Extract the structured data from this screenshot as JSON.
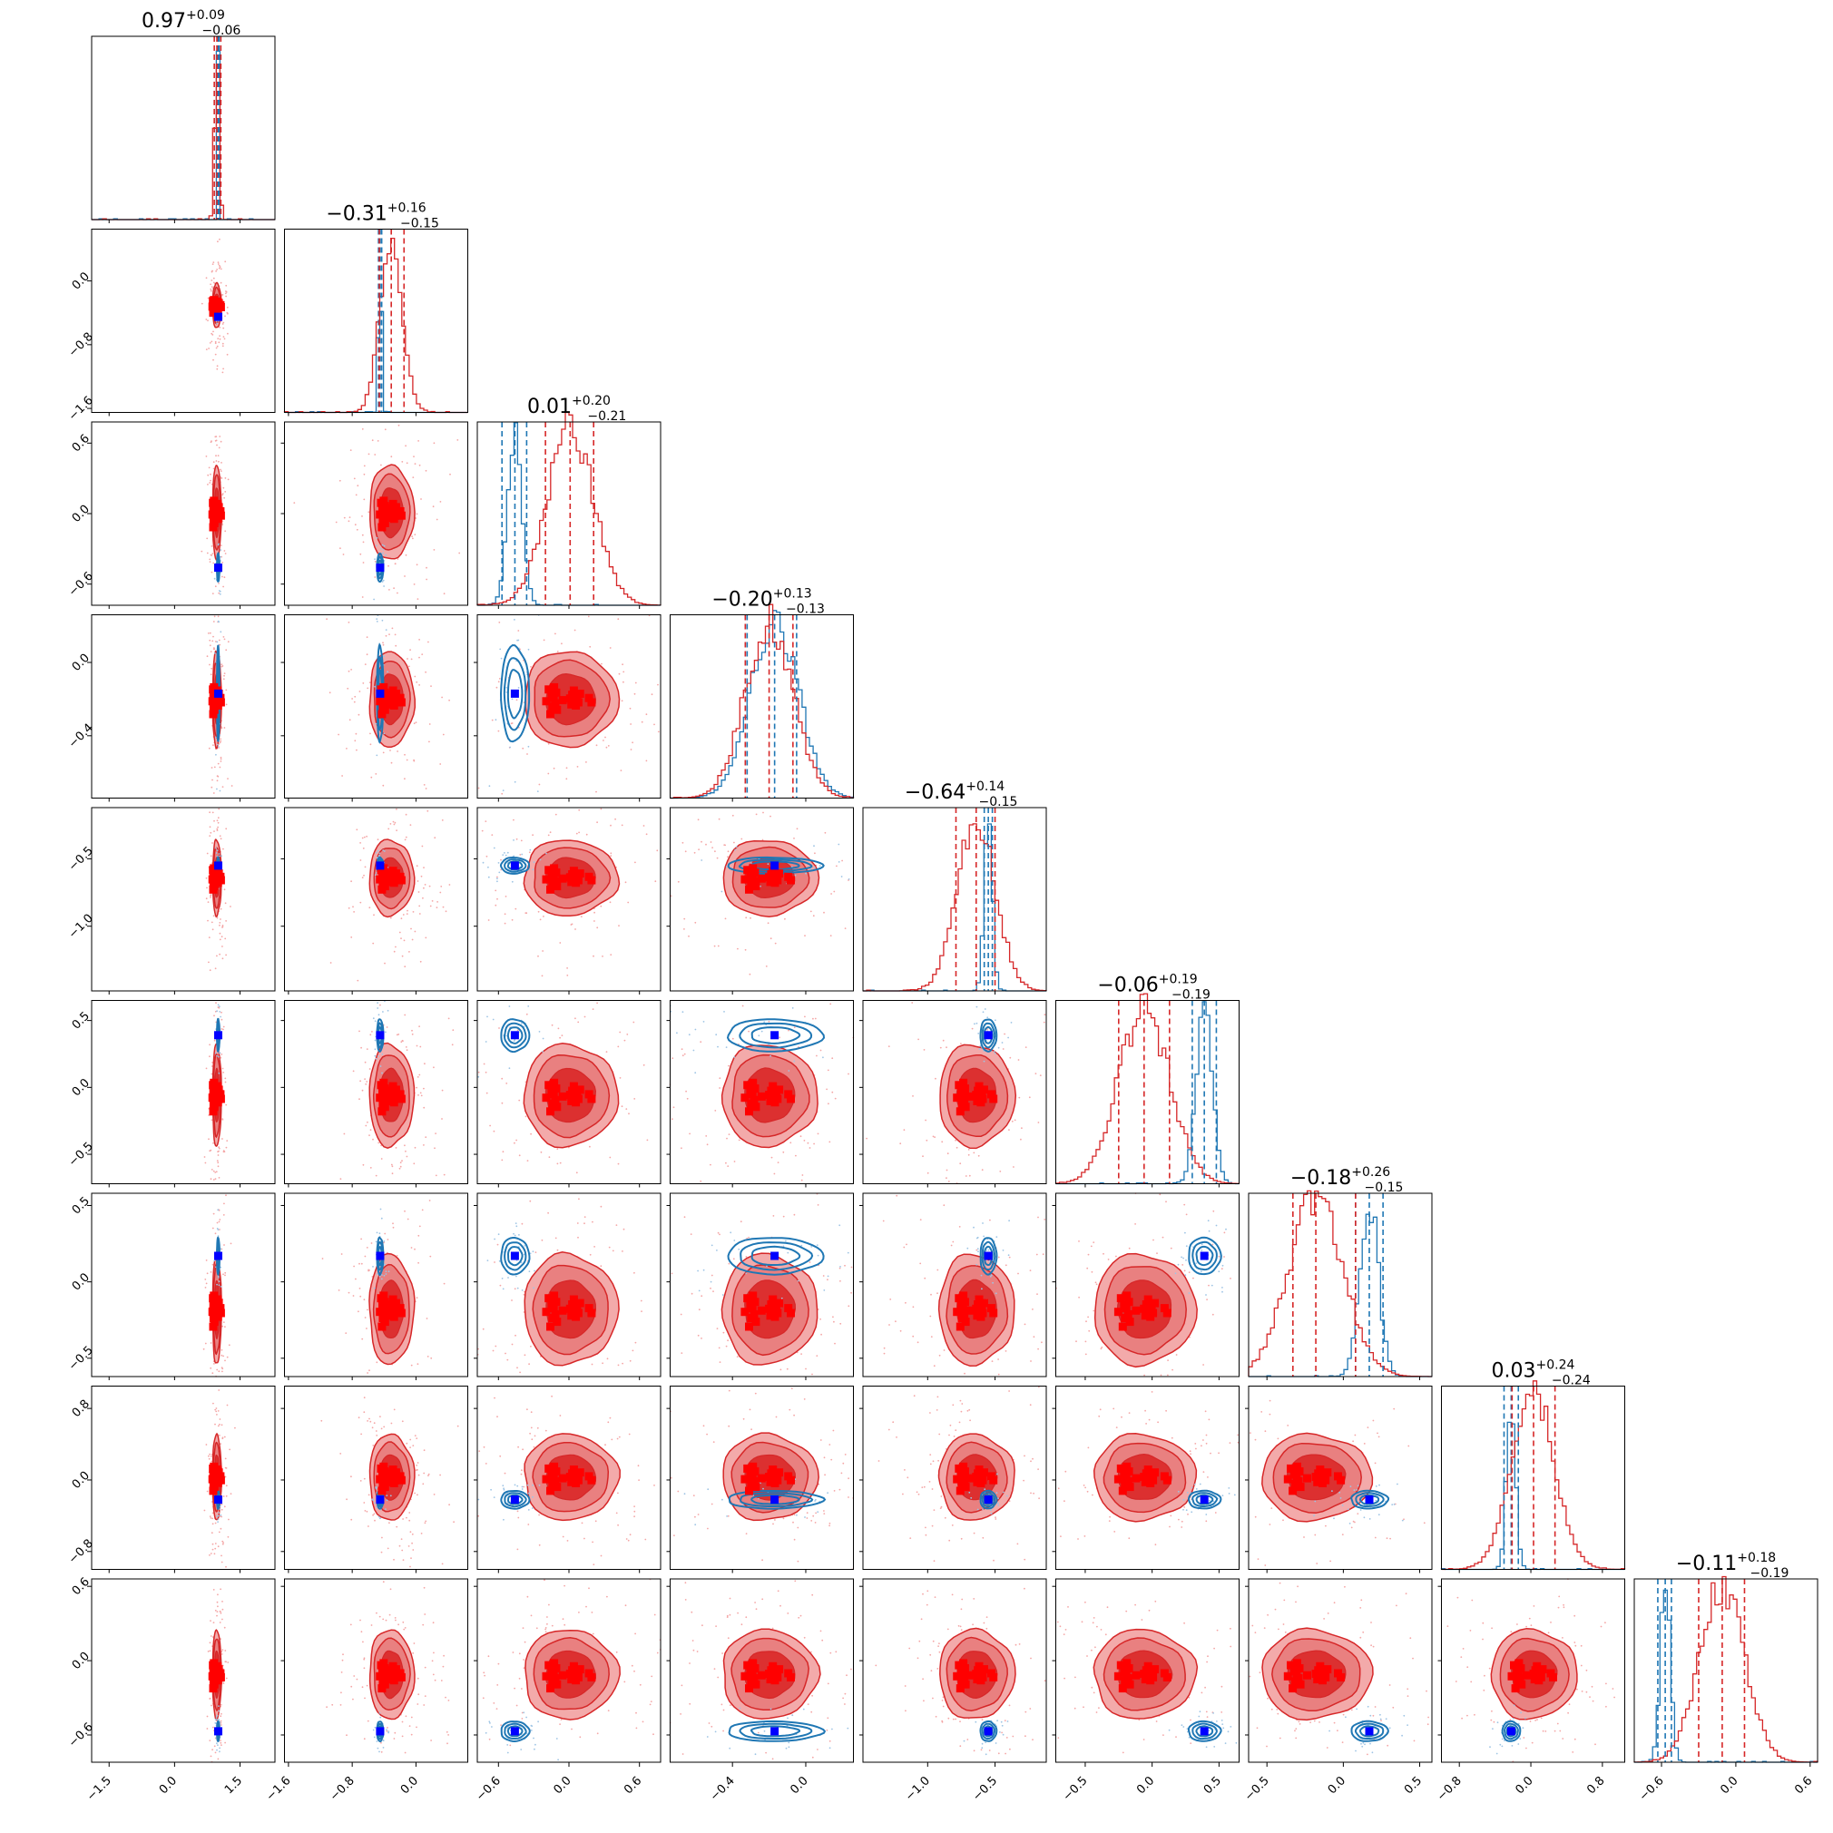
{
  "figure": {
    "kind": "corner-plot",
    "colors": {
      "posterior": "#d62728",
      "reference": "#1f77b4",
      "truth_marker": "#0000ff",
      "sample_marker": "#ff0000"
    }
  },
  "chart_data": {
    "type": "scatter",
    "subtype": "corner",
    "grid": false,
    "parameters": [
      {
        "index": 0,
        "title": {
          "median": "0.97",
          "plus": "+0.09",
          "minus": "−0.06"
        },
        "range": [
          -1.9,
          2.3
        ],
        "ticks": [
          {
            "v": -1.5,
            "label": "−1.5"
          },
          {
            "v": 0.0,
            "label": "0.0"
          },
          {
            "v": 1.5,
            "label": "1.5"
          }
        ],
        "truth": 1.0,
        "quantiles": [
          0.91,
          0.97,
          1.06
        ],
        "ref_lines": [
          0.99,
          1.0,
          1.02
        ],
        "mean": 0.97,
        "sd": 0.05,
        "ref_mean": 1.0,
        "ref_sd": 0.015
      },
      {
        "index": 1,
        "title": {
          "median": "−0.31",
          "plus": "+0.16",
          "minus": "−0.15"
        },
        "range": [
          -1.65,
          0.65
        ],
        "ticks": [
          {
            "v": -1.6,
            "label": "−1.6"
          },
          {
            "v": -0.8,
            "label": "−0.8"
          },
          {
            "v": 0.0,
            "label": "0.0"
          }
        ],
        "truth": -0.45,
        "quantiles": [
          -0.46,
          -0.31,
          -0.15
        ],
        "ref_lines": [
          -0.47,
          -0.45,
          -0.43
        ],
        "mean": -0.31,
        "sd": 0.14,
        "ref_mean": -0.45,
        "ref_sd": 0.02
      },
      {
        "index": 2,
        "title": {
          "median": "0.01",
          "plus": "+0.20",
          "minus": "−0.21"
        },
        "range": [
          -0.78,
          0.78
        ],
        "ticks": [
          {
            "v": -0.6,
            "label": "−0.6"
          },
          {
            "v": 0.0,
            "label": "0.0"
          },
          {
            "v": 0.6,
            "label": "0.6"
          }
        ],
        "truth": -0.46,
        "quantiles": [
          -0.2,
          0.01,
          0.21
        ],
        "ref_lines": [
          -0.57,
          -0.46,
          -0.36
        ],
        "mean": 0.01,
        "sd": 0.2,
        "ref_mean": -0.46,
        "ref_sd": 0.06
      },
      {
        "index": 3,
        "title": {
          "median": "−0.20",
          "plus": "+0.13",
          "minus": "−0.13"
        },
        "range": [
          -0.74,
          0.26
        ],
        "ticks": [
          {
            "v": -0.4,
            "label": "−0.4"
          },
          {
            "v": 0.0,
            "label": "0.0"
          }
        ],
        "truth": -0.17,
        "quantiles": [
          -0.33,
          -0.2,
          -0.07
        ],
        "ref_lines": [
          -0.32,
          -0.17,
          -0.05
        ],
        "mean": -0.2,
        "sd": 0.13,
        "ref_mean": -0.17,
        "ref_sd": 0.13
      },
      {
        "index": 4,
        "title": {
          "median": "−0.64",
          "plus": "+0.14",
          "minus": "−0.15"
        },
        "range": [
          -1.48,
          -0.12
        ],
        "ticks": [
          {
            "v": -1.0,
            "label": "−1.0"
          },
          {
            "v": -0.5,
            "label": "−0.5"
          }
        ],
        "truth": -0.55,
        "quantiles": [
          -0.79,
          -0.64,
          -0.5
        ],
        "ref_lines": [
          -0.58,
          -0.55,
          -0.52
        ],
        "mean": -0.64,
        "sd": 0.14,
        "ref_mean": -0.55,
        "ref_sd": 0.03
      },
      {
        "index": 5,
        "title": {
          "median": "−0.06",
          "plus": "+0.19",
          "minus": "−0.19"
        },
        "range": [
          -0.72,
          0.65
        ],
        "ticks": [
          {
            "v": -0.5,
            "label": "−0.5"
          },
          {
            "v": 0.0,
            "label": "0.0"
          },
          {
            "v": 0.5,
            "label": "0.5"
          }
        ],
        "truth": 0.39,
        "quantiles": [
          -0.25,
          -0.06,
          0.13
        ],
        "ref_lines": [
          0.3,
          0.39,
          0.48
        ],
        "mean": -0.06,
        "sd": 0.19,
        "ref_mean": 0.39,
        "ref_sd": 0.06
      },
      {
        "index": 6,
        "title": {
          "median": "−0.18",
          "plus": "+0.26",
          "minus": "−0.15"
        },
        "range": [
          -0.62,
          0.58
        ],
        "ticks": [
          {
            "v": -0.5,
            "label": "−0.5"
          },
          {
            "v": 0.0,
            "label": "0.0"
          },
          {
            "v": 0.5,
            "label": "0.5"
          }
        ],
        "truth": 0.17,
        "quantiles": [
          -0.33,
          -0.18,
          0.08
        ],
        "ref_lines": [
          0.08,
          0.17,
          0.26
        ],
        "mean": -0.18,
        "sd": 0.18,
        "ref_mean": 0.17,
        "ref_sd": 0.06
      },
      {
        "index": 7,
        "title": {
          "median": "0.03",
          "plus": "+0.24",
          "minus": "−0.24"
        },
        "range": [
          -1.0,
          1.05
        ],
        "ticks": [
          {
            "v": -0.8,
            "label": "−0.8"
          },
          {
            "v": 0.0,
            "label": "0.0"
          },
          {
            "v": 0.8,
            "label": "0.8"
          }
        ],
        "truth": -0.22,
        "quantiles": [
          -0.21,
          0.03,
          0.27
        ],
        "ref_lines": [
          -0.3,
          -0.22,
          -0.14
        ],
        "mean": 0.03,
        "sd": 0.24,
        "ref_mean": -0.22,
        "ref_sd": 0.05
      },
      {
        "index": 8,
        "title": {
          "median": "−0.11",
          "plus": "+0.18",
          "minus": "−0.19"
        },
        "range": [
          -0.82,
          0.66
        ],
        "ticks": [
          {
            "v": -0.6,
            "label": "−0.6"
          },
          {
            "v": 0.0,
            "label": "0.0"
          },
          {
            "v": 0.6,
            "label": "0.6"
          }
        ],
        "truth": -0.57,
        "quantiles": [
          -0.3,
          -0.11,
          0.07
        ],
        "ref_lines": [
          -0.63,
          -0.57,
          -0.52
        ],
        "mean": -0.11,
        "sd": 0.18,
        "ref_mean": -0.57,
        "ref_sd": 0.04
      }
    ],
    "red_point_offsets": [
      [
        -2.9,
        -0.2
      ],
      [
        -2.6,
        0.9
      ],
      [
        -2.4,
        -1.4
      ],
      [
        -2.25,
        0.3
      ],
      [
        -2.15,
        -0.7
      ],
      [
        -2.0,
        0.1
      ],
      [
        -1.95,
        1.1
      ],
      [
        -1.8,
        -0.4
      ],
      [
        -1.7,
        0.6
      ],
      [
        -1.6,
        -1.0
      ],
      [
        -0.9,
        -0.1
      ],
      [
        0.0,
        0.05
      ],
      [
        0.15,
        -0.5
      ],
      [
        0.25,
        0.4
      ],
      [
        0.35,
        -0.2
      ],
      [
        0.45,
        0.8
      ],
      [
        0.55,
        0.0
      ],
      [
        0.7,
        -0.6
      ],
      [
        0.85,
        0.3
      ],
      [
        1.0,
        -0.3
      ],
      [
        1.2,
        0.5
      ],
      [
        2.3,
        0.1
      ],
      [
        2.6,
        -0.3
      ]
    ]
  }
}
